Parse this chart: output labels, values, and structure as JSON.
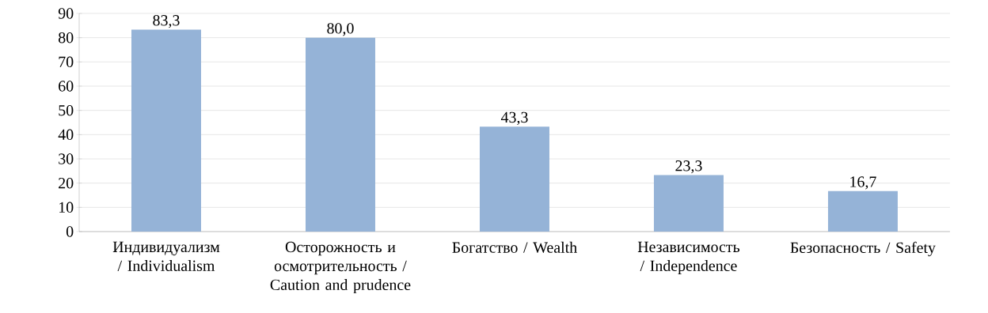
{
  "chart_data": {
    "type": "bar",
    "categories": [
      "Индивидуализм / Individualism",
      "Осторожность и осмотрительность / Caution and prudence",
      "Богатство / Wealth",
      "Независимость / Independence",
      "Безопасность / Safety"
    ],
    "values": [
      83.3,
      80.0,
      43.3,
      23.3,
      16.7
    ],
    "value_labels": [
      "83,3",
      "80,0",
      "43,3",
      "23,3",
      "16,7"
    ],
    "color": "#95b3d7",
    "ylim": [
      0,
      90
    ],
    "yticks": [
      0,
      10,
      20,
      30,
      40,
      50,
      60,
      70,
      80,
      90
    ],
    "grid": "y"
  }
}
